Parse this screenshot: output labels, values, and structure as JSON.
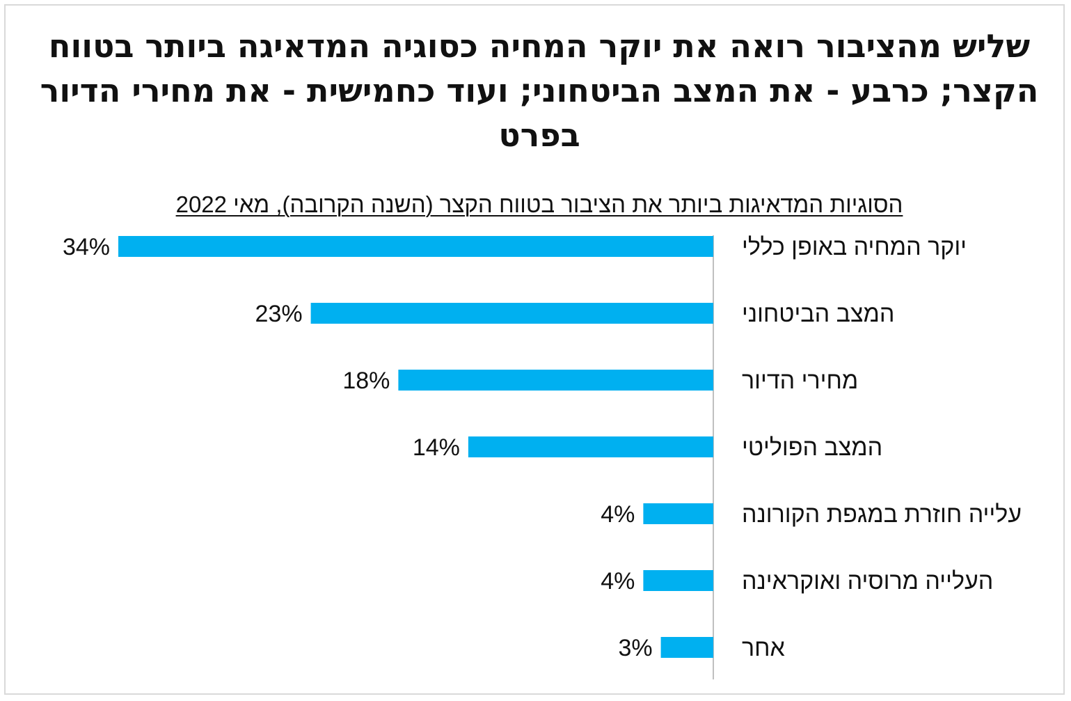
{
  "chart_data": {
    "type": "bar",
    "orientation": "horizontal",
    "title": "שליש מהציבור רואה את יוקר המחיה כסוגיה המדאיגה ביותר בטווח הקצר; כרבע - את המצב הביטחוני; ועוד כחמישית - את מחירי הדיור בפרט",
    "subtitle": "הסוגיות המדאיגות ביותר את הציבור בטווח הקצר (השנה הקרובה), מאי 2022",
    "categories": [
      "יוקר המחיה באופן כללי",
      "המצב הביטחוני",
      "מחירי הדיור",
      "המצב הפוליטי",
      "עלייה חוזרת במגפת הקורונה",
      "העלייה מרוסיה ואוקראינה",
      "אחר"
    ],
    "values": [
      34,
      23,
      18,
      14,
      4,
      4,
      3
    ],
    "value_labels": [
      "34%",
      "23%",
      "18%",
      "14%",
      "4%",
      "4%",
      "3%"
    ],
    "unit": "%",
    "bar_color": "#00b0f0",
    "axis_color": "#bfbfbf",
    "xlim": [
      0,
      34
    ],
    "grid": false,
    "legend": "none",
    "bar_direction": "right-to-left"
  }
}
